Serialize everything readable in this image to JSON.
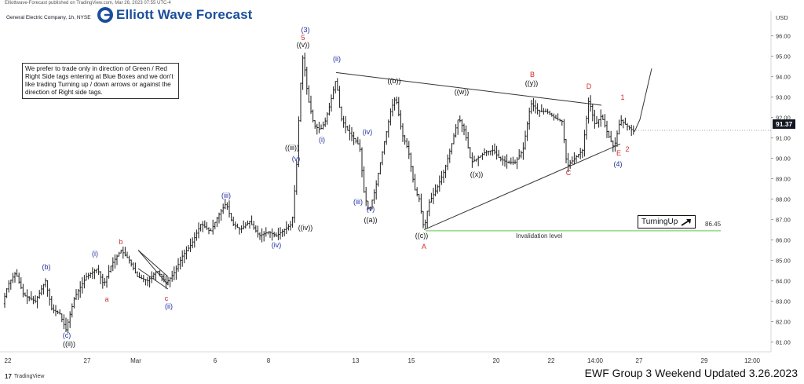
{
  "header": {
    "publisher": "Elliottwave-Forecast published on TradingView.com, Mar 26, 2023 07:55 UTC-4",
    "symbol": "General Electric Company, 1h, NYSE",
    "logo_text": "Elliott Wave Forecast"
  },
  "note": "We prefer to trade only in direction of Green / Red Right Side tags entering at Blue Boxes and we don't like trading Turning up / down arrows or against the direction of Right side tags.",
  "footer": "EWF Group 3 Weekend Updated 3.26.2023",
  "tradingview": "TradingView",
  "chart_data": {
    "type": "candlestick",
    "currency": "USD",
    "y_ticks": [
      "96.00",
      "95.00",
      "94.00",
      "93.00",
      "92.00",
      "91.00",
      "90.00",
      "89.00",
      "88.00",
      "87.00",
      "86.00",
      "85.00",
      "84.00",
      "83.00",
      "82.00",
      "81.00"
    ],
    "ylim": [
      80.6,
      96.6
    ],
    "x_ticks": [
      "22",
      "27",
      "Mar",
      "6",
      "8",
      "13",
      "15",
      "20",
      "22",
      "14:00",
      "27",
      "29",
      "12:00"
    ],
    "current_price": "91.37",
    "invalidation_level": {
      "label": "Invalidation level",
      "value": "86.45",
      "color": "#7bd36b"
    },
    "turning_box": {
      "label": "TurningUp",
      "arrow": "arrow-up-right-icon"
    },
    "wave_labels": [
      {
        "text": "(b)",
        "color": "blue"
      },
      {
        "text": "(c)",
        "color": "blue"
      },
      {
        "text": "((ii))",
        "color": "black"
      },
      {
        "text": "(i)",
        "color": "blue"
      },
      {
        "text": "a",
        "color": "red"
      },
      {
        "text": "b",
        "color": "red"
      },
      {
        "text": "c",
        "color": "red"
      },
      {
        "text": "(ii)",
        "color": "blue"
      },
      {
        "text": "(iii)",
        "color": "blue"
      },
      {
        "text": "(iv)",
        "color": "blue"
      },
      {
        "text": "((iv))",
        "color": "black"
      },
      {
        "text": "(v)",
        "color": "blue"
      },
      {
        "text": "((iii))",
        "color": "black"
      },
      {
        "text": "(3)",
        "color": "blue"
      },
      {
        "text": "5",
        "color": "red"
      },
      {
        "text": "((v))",
        "color": "black"
      },
      {
        "text": "(i)",
        "color": "blue"
      },
      {
        "text": "(ii)",
        "color": "blue"
      },
      {
        "text": "(iii)",
        "color": "blue"
      },
      {
        "text": "(iv)",
        "color": "blue"
      },
      {
        "text": "(v)",
        "color": "blue"
      },
      {
        "text": "((a))",
        "color": "black"
      },
      {
        "text": "((b))",
        "color": "black"
      },
      {
        "text": "((c))",
        "color": "black"
      },
      {
        "text": "A",
        "color": "red"
      },
      {
        "text": "((w))",
        "color": "black"
      },
      {
        "text": "((x))",
        "color": "black"
      },
      {
        "text": "((y))",
        "color": "black"
      },
      {
        "text": "B",
        "color": "red"
      },
      {
        "text": "C",
        "color": "red"
      },
      {
        "text": "D",
        "color": "red"
      },
      {
        "text": "E",
        "color": "red"
      },
      {
        "text": "(4)",
        "color": "blue"
      },
      {
        "text": "1",
        "color": "red"
      },
      {
        "text": "2",
        "color": "red"
      }
    ],
    "price_path": [
      [
        0,
        82.4
      ],
      [
        10,
        83.8
      ],
      [
        20,
        84.4
      ],
      [
        30,
        83.3
      ],
      [
        45,
        83.0
      ],
      [
        58,
        84.0
      ],
      [
        66,
        82.6
      ],
      [
        76,
        82.4
      ],
      [
        84,
        81.6
      ],
      [
        95,
        83.2
      ],
      [
        110,
        84.2
      ],
      [
        124,
        84.6
      ],
      [
        132,
        83.8
      ],
      [
        142,
        84.8
      ],
      [
        154,
        85.5
      ],
      [
        165,
        85.0
      ],
      [
        175,
        84.2
      ],
      [
        188,
        84.0
      ],
      [
        200,
        84.5
      ],
      [
        212,
        83.9
      ],
      [
        222,
        84.4
      ],
      [
        232,
        85.2
      ],
      [
        244,
        85.8
      ],
      [
        256,
        86.8
      ],
      [
        268,
        86.4
      ],
      [
        278,
        87.2
      ],
      [
        288,
        87.8
      ],
      [
        296,
        86.8
      ],
      [
        306,
        86.5
      ],
      [
        318,
        86.9
      ],
      [
        330,
        86.2
      ],
      [
        342,
        86.4
      ],
      [
        352,
        86.2
      ],
      [
        362,
        86.5
      ],
      [
        372,
        86.8
      ],
      [
        378,
        89.8
      ],
      [
        382,
        93.2
      ],
      [
        386,
        95.1
      ],
      [
        392,
        93.0
      ],
      [
        400,
        91.6
      ],
      [
        408,
        91.4
      ],
      [
        414,
        91.8
      ],
      [
        420,
        92.6
      ],
      [
        428,
        93.9
      ],
      [
        434,
        92.0
      ],
      [
        442,
        91.4
      ],
      [
        450,
        91.0
      ],
      [
        458,
        90.6
      ],
      [
        464,
        88.2
      ],
      [
        470,
        87.4
      ],
      [
        478,
        88.5
      ],
      [
        488,
        90.5
      ],
      [
        498,
        92.4
      ],
      [
        504,
        93.0
      ],
      [
        512,
        91.2
      ],
      [
        520,
        90.4
      ],
      [
        528,
        88.5
      ],
      [
        534,
        88.0
      ],
      [
        540,
        86.5
      ],
      [
        546,
        87.8
      ],
      [
        556,
        88.5
      ],
      [
        566,
        89.4
      ],
      [
        576,
        90.8
      ],
      [
        584,
        92.0
      ],
      [
        592,
        91.3
      ],
      [
        600,
        89.8
      ],
      [
        608,
        90.0
      ],
      [
        618,
        90.3
      ],
      [
        628,
        90.4
      ],
      [
        636,
        90.0
      ],
      [
        646,
        89.8
      ],
      [
        656,
        89.8
      ],
      [
        666,
        90.4
      ],
      [
        676,
        92.7
      ],
      [
        686,
        92.3
      ],
      [
        696,
        92.3
      ],
      [
        706,
        92.0
      ],
      [
        716,
        91.8
      ],
      [
        722,
        89.6
      ],
      [
        732,
        90.0
      ],
      [
        742,
        90.4
      ],
      [
        750,
        92.9
      ],
      [
        758,
        91.6
      ],
      [
        766,
        92.1
      ],
      [
        774,
        91.2
      ],
      [
        782,
        90.5
      ],
      [
        790,
        91.9
      ],
      [
        798,
        91.6
      ],
      [
        808,
        91.3
      ]
    ]
  }
}
